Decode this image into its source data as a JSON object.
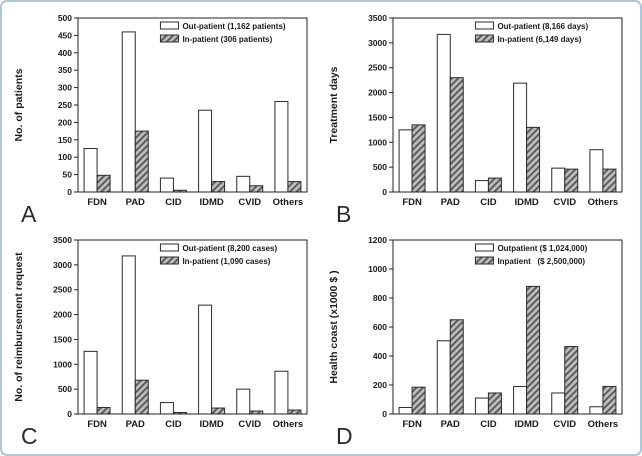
{
  "figure": {
    "border_color": "#aec8da",
    "background": "#ffffff",
    "text_color": "#1a1a1a",
    "series_styles": {
      "outpatient": {
        "fill": "#ffffff",
        "stroke": "#2b2b2b"
      },
      "inpatient": {
        "fill": "#bdbdbd",
        "hatch": "#5a5a5a",
        "stroke": "#2b2b2b"
      }
    }
  },
  "chart_data": [
    {
      "panel_label": "A",
      "type": "bar",
      "title": "",
      "xlabel": "",
      "ylabel": "No. of patients",
      "ylim": [
        0,
        500
      ],
      "ytick_step": 50,
      "grid": false,
      "legend_position": "top-right",
      "categories": [
        "FDN",
        "PAD",
        "CID",
        "IDMD",
        "CVID",
        "Others"
      ],
      "series": [
        {
          "name": "Out-patient (1,162 patients)",
          "style": "outpatient",
          "values": [
            125,
            460,
            40,
            235,
            45,
            260
          ]
        },
        {
          "name": "In-patient (306 patients)",
          "style": "inpatient",
          "values": [
            48,
            175,
            5,
            30,
            18,
            30
          ]
        }
      ]
    },
    {
      "panel_label": "B",
      "type": "bar",
      "title": "",
      "xlabel": "",
      "ylabel": "Treatment days",
      "ylim": [
        0,
        3500
      ],
      "ytick_step": 500,
      "grid": false,
      "legend_position": "top-right",
      "categories": [
        "FDN",
        "PAD",
        "CID",
        "IDMD",
        "CVID",
        "Others"
      ],
      "series": [
        {
          "name": "Out-patient (8,166 days)",
          "style": "outpatient",
          "values": [
            1250,
            3170,
            230,
            2190,
            480,
            850
          ]
        },
        {
          "name": "In-patient (6,149 days)",
          "style": "inpatient",
          "values": [
            1350,
            2300,
            280,
            1300,
            460,
            460
          ]
        }
      ]
    },
    {
      "panel_label": "C",
      "type": "bar",
      "title": "",
      "xlabel": "",
      "ylabel": "No. of reimbursement request",
      "ylim": [
        0,
        3500
      ],
      "ytick_step": 500,
      "grid": false,
      "legend_position": "top-right",
      "categories": [
        "FDN",
        "PAD",
        "CID",
        "IDMD",
        "CVID",
        "Others"
      ],
      "series": [
        {
          "name": "Out-patient (8,200 cases)",
          "style": "outpatient",
          "values": [
            1260,
            3180,
            230,
            2190,
            500,
            860
          ]
        },
        {
          "name": "In-patient (1,090 cases)",
          "style": "inpatient",
          "values": [
            130,
            680,
            30,
            120,
            60,
            80
          ]
        }
      ]
    },
    {
      "panel_label": "D",
      "type": "bar",
      "title": "",
      "xlabel": "",
      "ylabel": "Health coast (x1000 $ )",
      "ylim": [
        0,
        1200
      ],
      "ytick_step": 200,
      "grid": false,
      "legend_position": "top-right",
      "categories": [
        "FDN",
        "PAD",
        "CID",
        "IDMD",
        "CVID",
        "Others"
      ],
      "series": [
        {
          "name": "Outpatient ($ 1,024,000)",
          "style": "outpatient",
          "values": [
            45,
            505,
            110,
            190,
            145,
            50
          ]
        },
        {
          "name": "Inpatient   ($ 2,500,000)",
          "style": "inpatient",
          "values": [
            185,
            650,
            145,
            880,
            465,
            190
          ]
        }
      ]
    }
  ]
}
